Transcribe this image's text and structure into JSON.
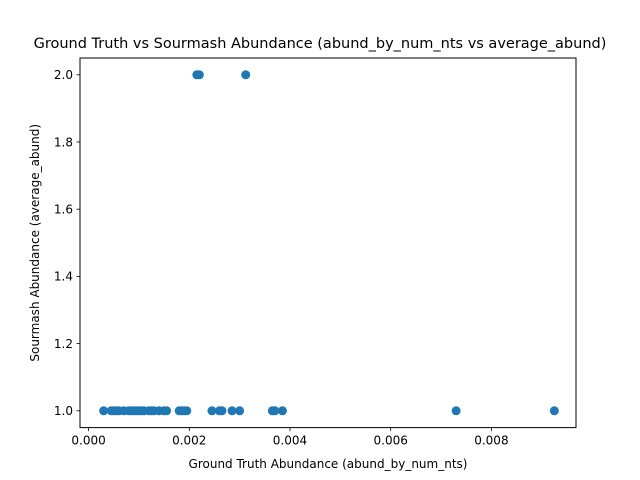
{
  "chart_data": {
    "type": "scatter",
    "title": "Ground Truth vs Sourmash Abundance (abund_by_num_nts vs average_abund)",
    "xlabel": "Ground Truth Abundance (abund_by_num_nts)",
    "ylabel": "Sourmash Abundance (average_abund)",
    "xlim": [
      -0.00017,
      0.00968
    ],
    "ylim": [
      0.95,
      2.05
    ],
    "xticks": [
      0.0,
      0.002,
      0.004,
      0.006,
      0.008
    ],
    "xtick_labels": [
      "0.000",
      "0.002",
      "0.004",
      "0.006",
      "0.008"
    ],
    "yticks": [
      1.0,
      1.2,
      1.4,
      1.6,
      1.8,
      2.0
    ],
    "ytick_labels": [
      "1.0",
      "1.2",
      "1.4",
      "1.6",
      "1.8",
      "2.0"
    ],
    "grid": false,
    "marker_color": "#1f77b4",
    "series": [
      {
        "points": [
          [
            0.0003,
            1.0
          ],
          [
            0.00045,
            1.0
          ],
          [
            0.0005,
            1.0
          ],
          [
            0.00055,
            1.0
          ],
          [
            0.0006,
            1.0
          ],
          [
            0.0007,
            1.0
          ],
          [
            0.0008,
            1.0
          ],
          [
            0.00085,
            1.0
          ],
          [
            0.0009,
            1.0
          ],
          [
            0.00095,
            1.0
          ],
          [
            0.001,
            1.0
          ],
          [
            0.00105,
            1.0
          ],
          [
            0.0011,
            1.0
          ],
          [
            0.0012,
            1.0
          ],
          [
            0.00125,
            1.0
          ],
          [
            0.0013,
            1.0
          ],
          [
            0.0014,
            1.0
          ],
          [
            0.0015,
            1.0
          ],
          [
            0.00155,
            1.0
          ],
          [
            0.0018,
            1.0
          ],
          [
            0.00185,
            1.0
          ],
          [
            0.0019,
            1.0
          ],
          [
            0.00195,
            1.0
          ],
          [
            0.00245,
            1.0
          ],
          [
            0.0026,
            1.0
          ],
          [
            0.00265,
            1.0
          ],
          [
            0.00285,
            1.0
          ],
          [
            0.003,
            1.0
          ],
          [
            0.00365,
            1.0
          ],
          [
            0.0037,
            1.0
          ],
          [
            0.00385,
            1.0
          ],
          [
            0.0073,
            1.0
          ],
          [
            0.00925,
            1.0
          ],
          [
            0.00215,
            2.0
          ],
          [
            0.0022,
            2.0
          ],
          [
            0.00312,
            2.0
          ]
        ]
      }
    ]
  }
}
